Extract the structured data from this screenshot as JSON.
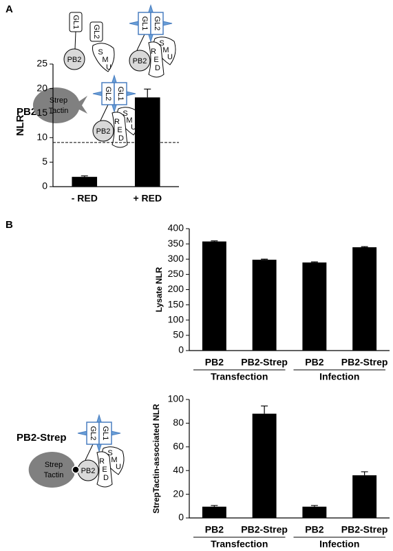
{
  "panels": [
    "A",
    "B"
  ],
  "row_labels": [
    "PB2",
    "PB2-Strep"
  ],
  "diagram_text": {
    "gl1": "GL1",
    "gl2": "GL2",
    "pb2": "PB2",
    "smu": [
      "S",
      "M",
      "U"
    ],
    "red": [
      "R",
      "E",
      "D"
    ],
    "strep": [
      "Strep",
      "Tactin"
    ]
  },
  "chart_data": [
    {
      "type": "bar",
      "ylabel": "NLR",
      "categories": [
        "- RED",
        "+ RED"
      ],
      "values": [
        2,
        18.2
      ],
      "errors": [
        0.2,
        1.7
      ],
      "color": "#000000",
      "ylim": [
        0,
        25
      ],
      "yticks": [
        0,
        5,
        10,
        15,
        20,
        25
      ],
      "hline": 9
    },
    {
      "type": "bar",
      "ylabel": "Lysate NLR",
      "categories": [
        "PB2",
        "PB2-Strep",
        "PB2",
        "PB2-Strep"
      ],
      "groups": [
        "Transfection",
        "Infection"
      ],
      "values": [
        358,
        298,
        289,
        339
      ],
      "errors": [
        2,
        2,
        2,
        2
      ],
      "color": "#000000",
      "ylim": [
        0,
        400
      ],
      "yticks": [
        0,
        50,
        100,
        150,
        200,
        250,
        300,
        350,
        400
      ]
    },
    {
      "type": "bar",
      "ylabel": "StrepTactin-associated NLR",
      "categories": [
        "PB2",
        "PB2-Strep",
        "PB2",
        "PB2-Strep"
      ],
      "groups": [
        "Transfection",
        "Infection"
      ],
      "values": [
        9.5,
        88,
        9.5,
        36
      ],
      "errors": [
        1,
        6.5,
        1,
        3
      ],
      "color": "#000000",
      "ylim": [
        0,
        100
      ],
      "yticks": [
        0,
        20,
        40,
        60,
        80,
        100
      ]
    }
  ]
}
